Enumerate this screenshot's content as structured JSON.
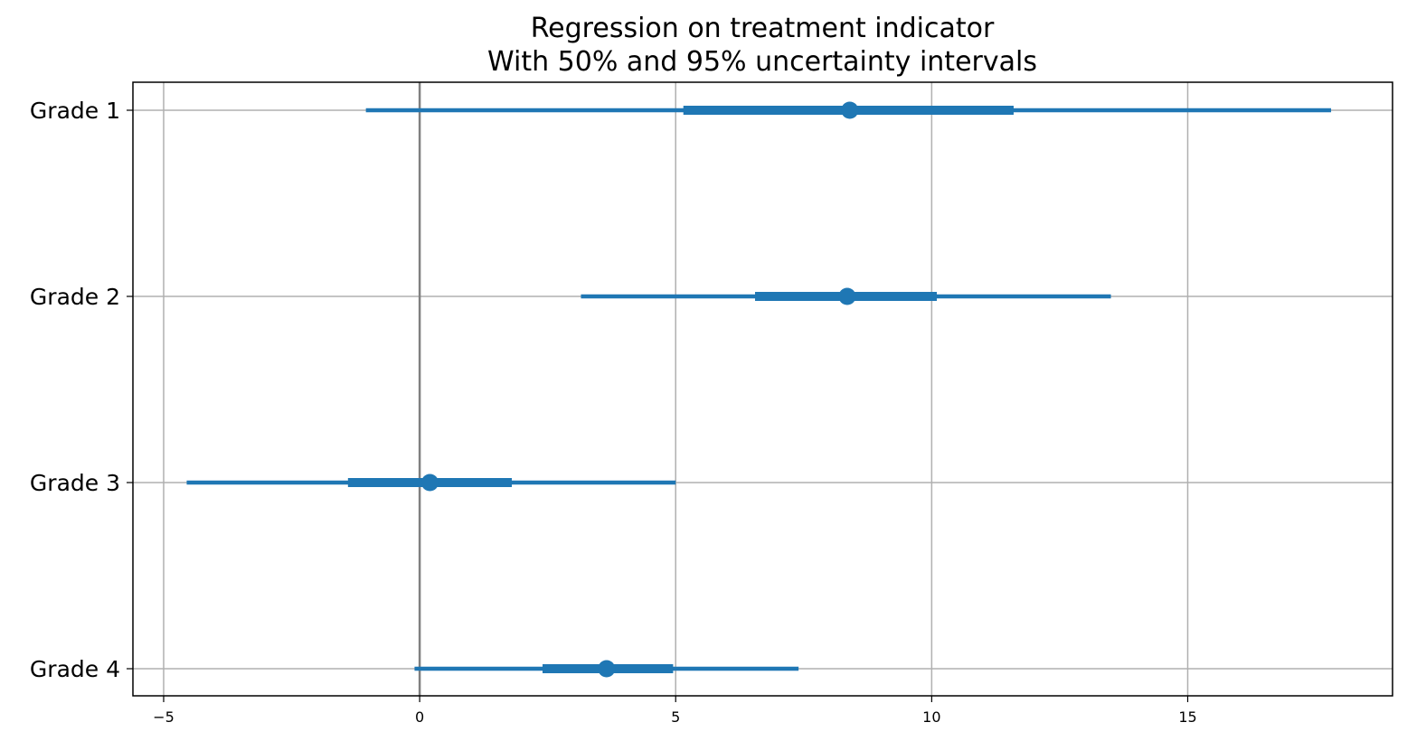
{
  "chart_data": {
    "type": "scatter",
    "title": [
      "Regression on treatment indicator",
      "With 50% and 95% uncertainty intervals"
    ],
    "xlabel": "",
    "ylabel": "",
    "xlim": [
      -5.6,
      19.0
    ],
    "xticks": [
      -5,
      0,
      5,
      10,
      15
    ],
    "xtick_labels": [
      "−5",
      "0",
      "5",
      "10",
      "15"
    ],
    "reference_line_x": 0,
    "grid": true,
    "legend": "none",
    "categories": [
      "Grade 1",
      "Grade 2",
      "Grade 3",
      "Grade 4"
    ],
    "series": [
      {
        "points": [
          8.4,
          8.35,
          0.2,
          3.65
        ],
        "interval_50": [
          [
            5.15,
            11.6
          ],
          [
            6.55,
            10.1
          ],
          [
            -1.4,
            1.8
          ],
          [
            2.4,
            4.95
          ]
        ],
        "interval_95": [
          [
            -1.05,
            17.8
          ],
          [
            3.15,
            13.5
          ],
          [
            -4.55,
            5.0
          ],
          [
            -0.1,
            7.4
          ]
        ]
      }
    ],
    "colors": {
      "series": "#1f77b4",
      "grid": "#b0b0b0",
      "reference_line": "#808080",
      "axes": "#000000"
    }
  }
}
